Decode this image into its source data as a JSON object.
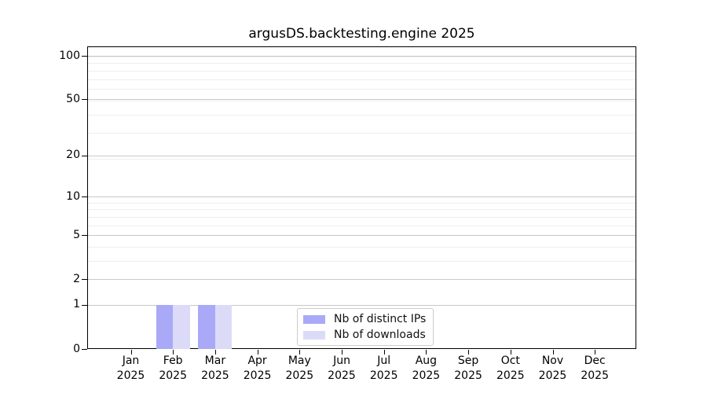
{
  "chart_data": {
    "type": "bar",
    "title": "argusDS.backtesting.engine 2025",
    "categories": [
      "Jan 2025",
      "Feb 2025",
      "Mar 2025",
      "Apr 2025",
      "May 2025",
      "Jun 2025",
      "Jul 2025",
      "Aug 2025",
      "Sep 2025",
      "Oct 2025",
      "Nov 2025",
      "Dec 2025"
    ],
    "series": [
      {
        "name": "Nb of distinct IPs",
        "color": "#a9a9f7",
        "values": [
          0,
          1,
          1,
          0,
          0,
          0,
          0,
          0,
          0,
          0,
          0,
          0
        ]
      },
      {
        "name": "Nb of downloads",
        "color": "#dbdbf8",
        "values": [
          0,
          1,
          1,
          0,
          0,
          0,
          0,
          0,
          0,
          0,
          0,
          0
        ]
      }
    ],
    "y_axis": {
      "scale": "log1p",
      "ticks": [
        0,
        1,
        2,
        5,
        10,
        20,
        50,
        100
      ],
      "top_value": 116
    },
    "grid": {
      "major_color": "#c8c8c8",
      "minor_color": "#eeeeee"
    },
    "legend": {
      "position": "lower-center"
    }
  }
}
